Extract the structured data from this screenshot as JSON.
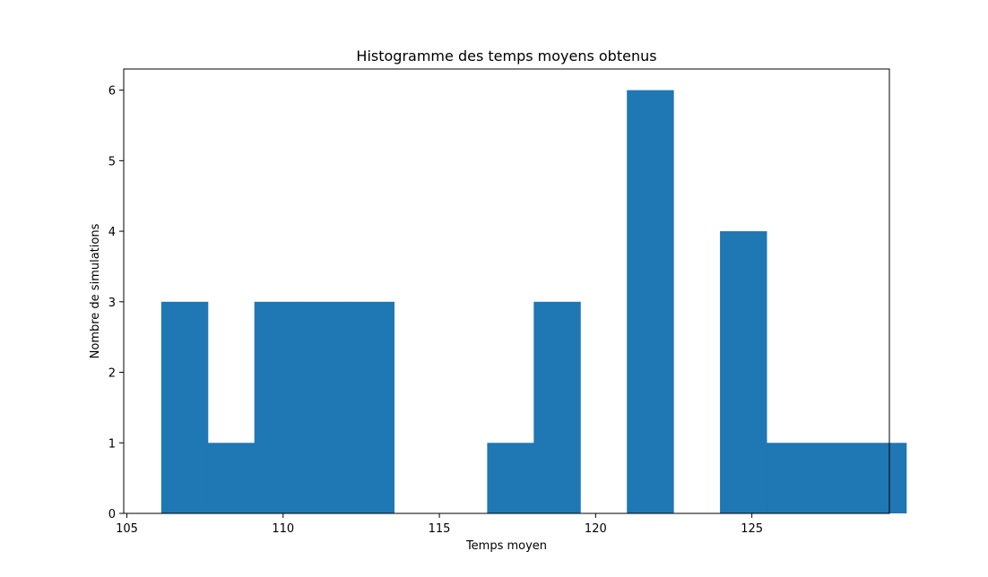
{
  "chart_data": {
    "type": "bar",
    "title": "Histogramme des temps moyens obtenus",
    "xlabel": "Temps moyen",
    "ylabel": "Nombre de simulations",
    "bin_start": 106.1,
    "bin_width": 1.49,
    "values": [
      3,
      1,
      3,
      3,
      3,
      0,
      0,
      1,
      3,
      0,
      6,
      0,
      4,
      1,
      1,
      1
    ],
    "xlim": [
      104.9,
      129.4
    ],
    "ylim": [
      0,
      6.3
    ],
    "xticks": [
      105,
      110,
      115,
      120,
      125
    ],
    "yticks": [
      0,
      1,
      2,
      3,
      4,
      5,
      6
    ],
    "bar_color": "#1f77b4",
    "grid": false
  }
}
